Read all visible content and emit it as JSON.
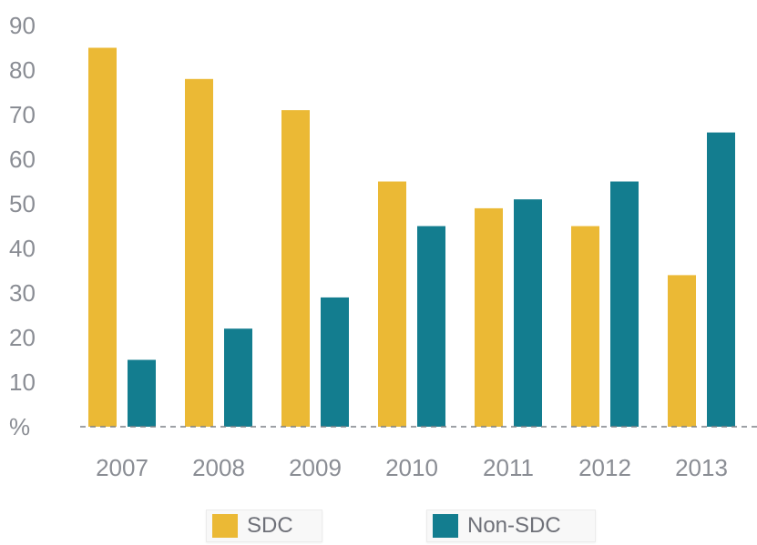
{
  "chart_data": {
    "type": "bar",
    "categories": [
      "2007",
      "2008",
      "2009",
      "2010",
      "2011",
      "2012",
      "2013"
    ],
    "series": [
      {
        "name": "SDC",
        "color": "#ebb935",
        "values": [
          85,
          78,
          71,
          55,
          49,
          45,
          34
        ]
      },
      {
        "name": "Non-SDC",
        "color": "#137d8f",
        "values": [
          15,
          22,
          29,
          45,
          51,
          55,
          66
        ]
      }
    ],
    "y_ticks": [
      10,
      20,
      30,
      40,
      50,
      60,
      70,
      80,
      90
    ],
    "ylim": [
      0,
      90
    ],
    "y_unit_label": "%",
    "grid": false,
    "baseline": "dashed",
    "legend_position": "bottom"
  }
}
